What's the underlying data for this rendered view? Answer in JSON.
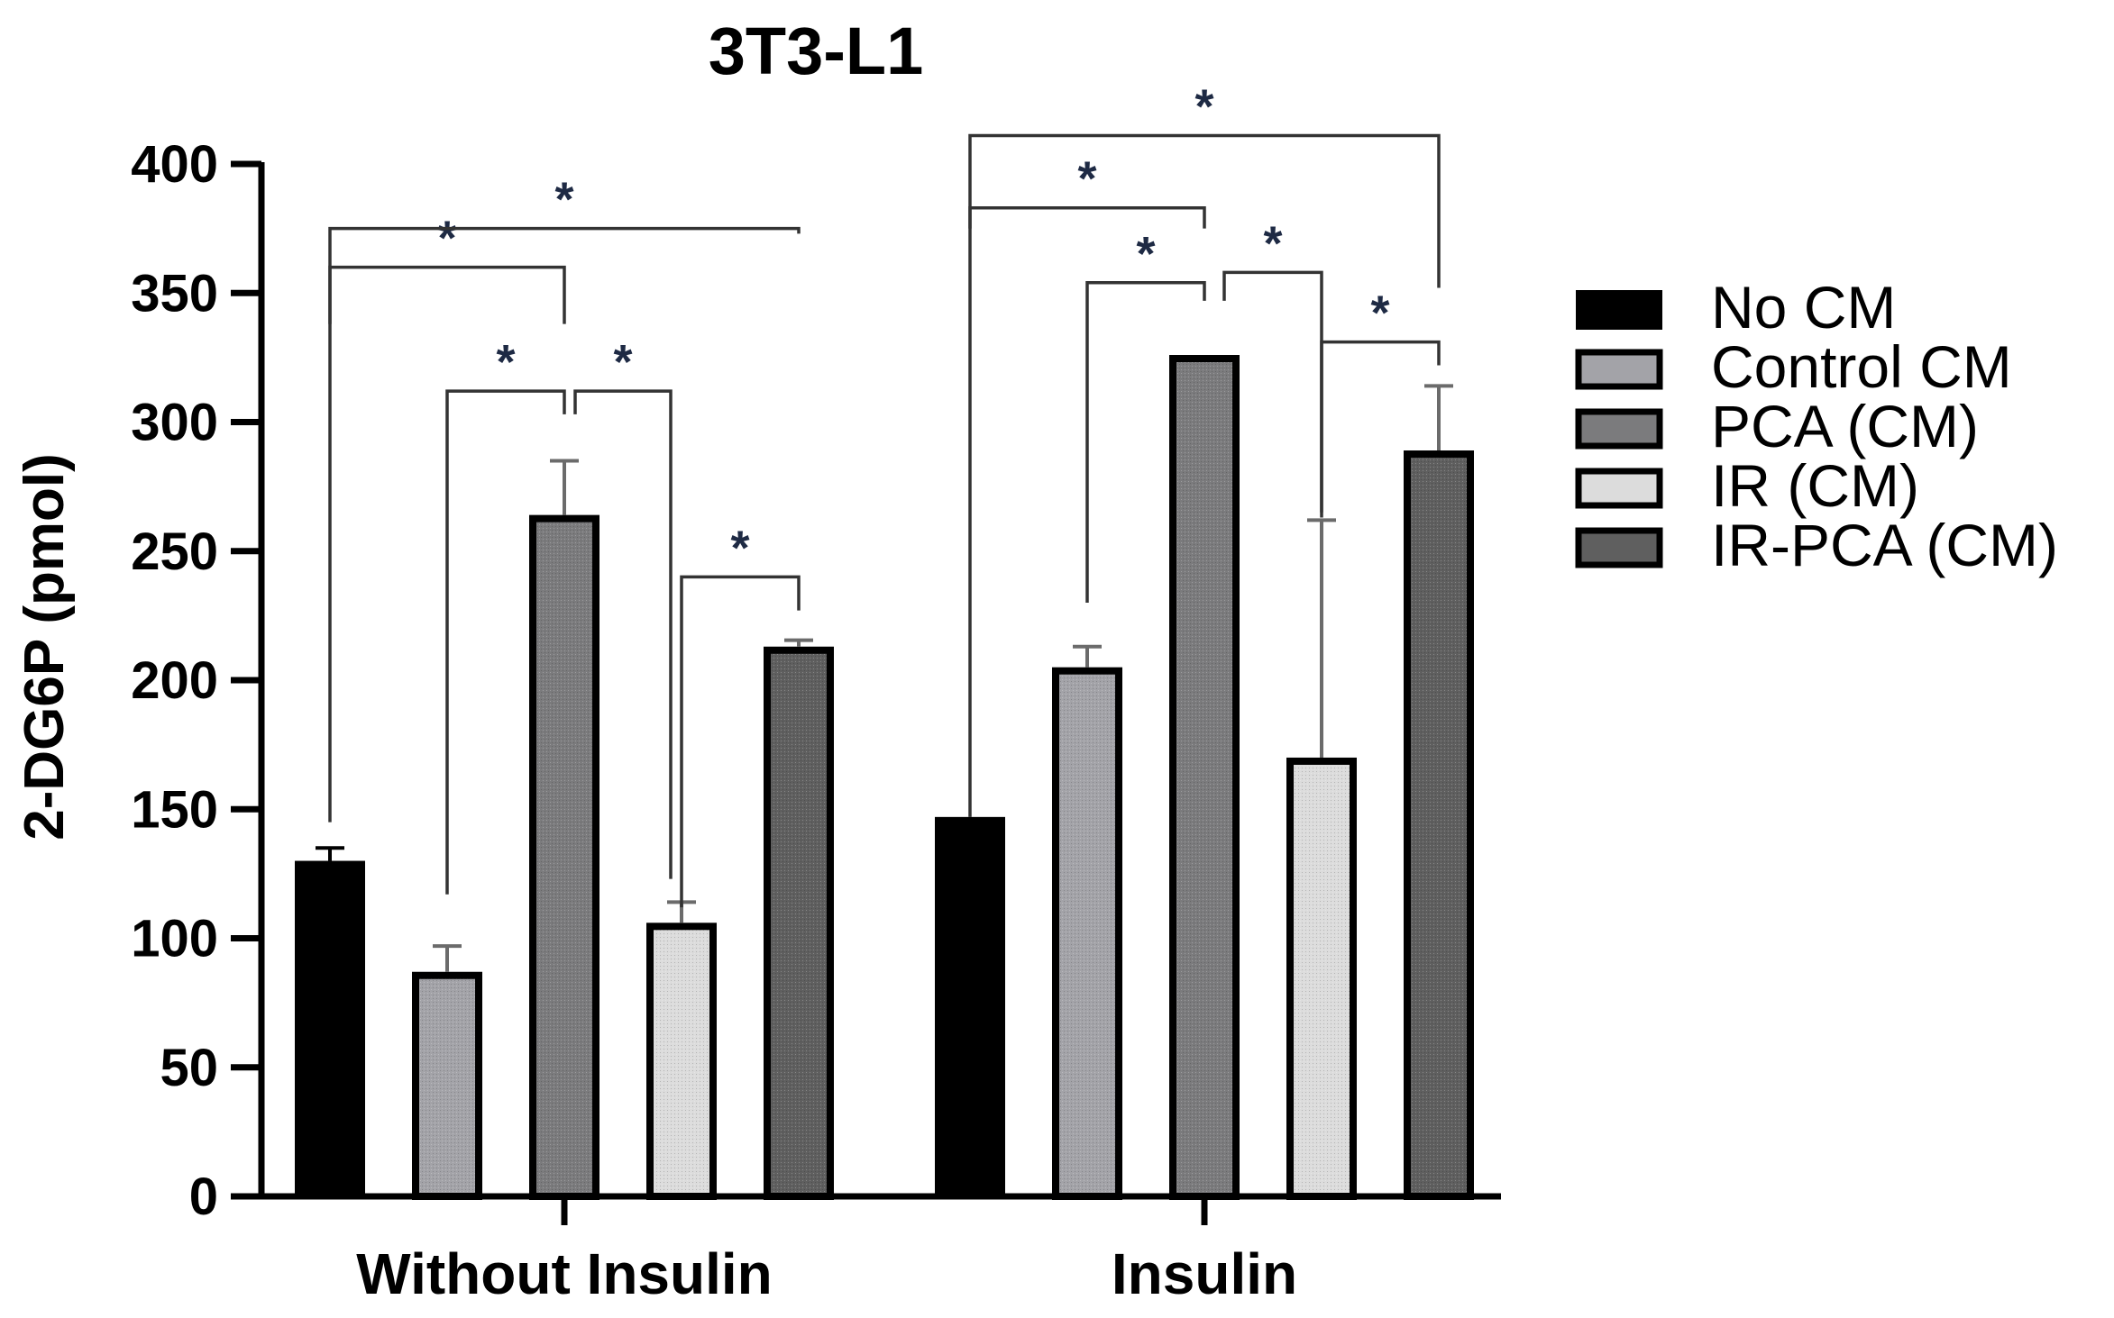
{
  "chart_data": {
    "type": "bar",
    "title": "3T3-L1",
    "xlabel": "",
    "ylabel": "2-DG6P (pmol)",
    "ylim": [
      0,
      400
    ],
    "yticks": [
      0,
      50,
      100,
      150,
      200,
      250,
      300,
      350,
      400
    ],
    "categories": [
      "Without Insulin",
      "Insulin"
    ],
    "grid": false,
    "legend_position": "right",
    "series": [
      {
        "name": "No CM",
        "color": "#000000",
        "values": [
          130,
          147
        ],
        "errors": [
          5,
          0
        ]
      },
      {
        "name": "Control CM",
        "color": "#a3a3a8",
        "values": [
          87,
          205
        ],
        "errors": [
          10,
          8
        ]
      },
      {
        "name": "PCA (CM)",
        "color": "#7b7b7d",
        "values": [
          264,
          326
        ],
        "errors": [
          21,
          0.5
        ]
      },
      {
        "name": "IR (CM)",
        "color": "#dcdcdc",
        "values": [
          106,
          170
        ],
        "errors": [
          8,
          92
        ]
      },
      {
        "name": "IR-PCA (CM)",
        "color": "#5f5f5f",
        "values": [
          213,
          289
        ],
        "errors": [
          2.5,
          25
        ]
      }
    ],
    "significance": [
      {
        "group": 0,
        "from": 0,
        "to": 2,
        "label": "*"
      },
      {
        "group": 0,
        "from": 0,
        "to": 4,
        "label": "*"
      },
      {
        "group": 0,
        "from": 1,
        "to": 2,
        "label": "*"
      },
      {
        "group": 0,
        "from": 2,
        "to": 3,
        "label": "*"
      },
      {
        "group": 0,
        "from": 3,
        "to": 4,
        "label": "*"
      },
      {
        "group": 1,
        "from": 0,
        "to": 2,
        "label": "*"
      },
      {
        "group": 1,
        "from": 0,
        "to": 4,
        "label": "*"
      },
      {
        "group": 1,
        "from": 1,
        "to": 2,
        "label": "*"
      },
      {
        "group": 1,
        "from": 2,
        "to": 3,
        "label": "*"
      },
      {
        "group": 1,
        "from": 3,
        "to": 4,
        "label": "*"
      }
    ]
  }
}
